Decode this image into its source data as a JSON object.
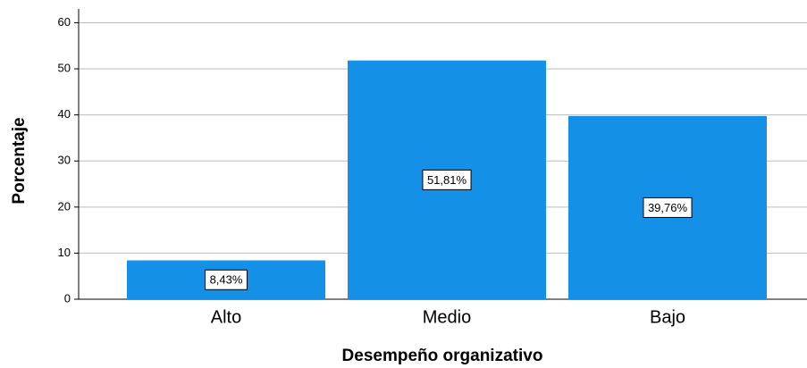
{
  "chart_data": {
    "type": "bar",
    "x_label": "Desempeño organizativo",
    "y_label": "Porcentaje",
    "categories": [
      "Alto",
      "Medio",
      "Bajo"
    ],
    "values": [
      8.43,
      51.81,
      39.76
    ],
    "value_labels": [
      "8,43%",
      "51,81%",
      "39,76%"
    ],
    "color": "#1490e6",
    "ylim": [
      0,
      63
    ],
    "yticks": [
      0,
      10,
      20,
      30,
      40,
      50,
      60
    ],
    "grid": true
  }
}
